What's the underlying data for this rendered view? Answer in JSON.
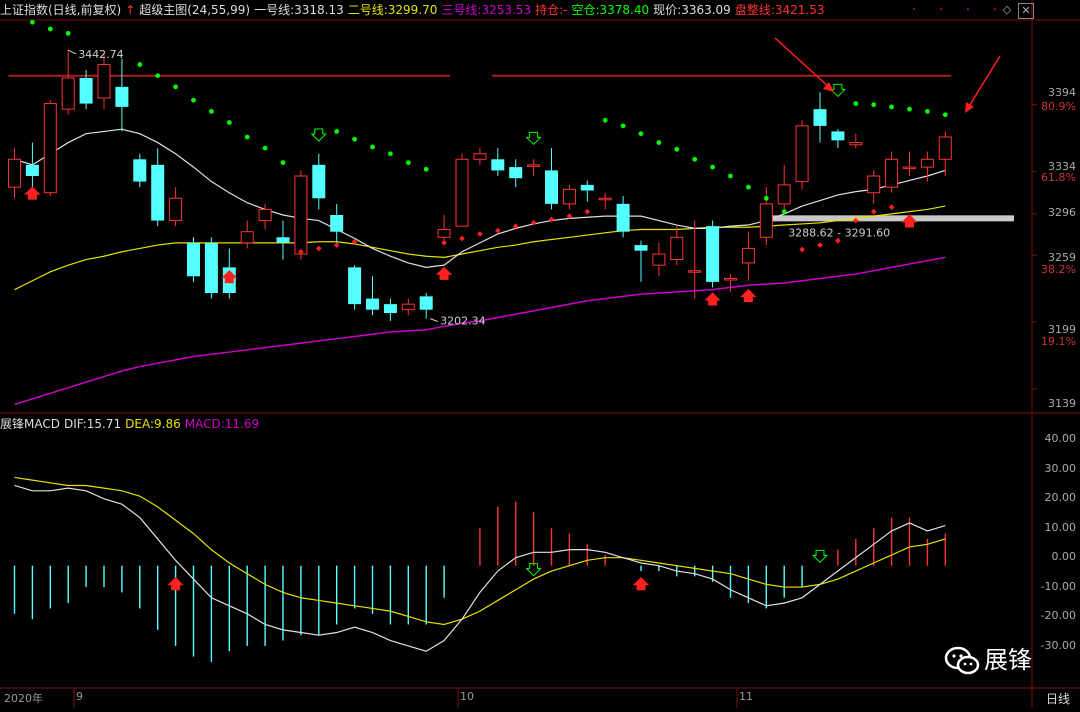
{
  "header": {
    "title": "上证指数(日线,前复权)",
    "indicator_name": "超级主图(24,55,99)",
    "line1_label": "一号线:",
    "line1_value": "3318.13",
    "line2_label": "二号线:",
    "line2_value": "3299.70",
    "line3_label": "三号线:",
    "line3_value": "3253.53",
    "hold_label": "持仓:",
    "hold_value": "-",
    "empty_label": "空仓:",
    "empty_value": "3378.40",
    "price_label": "现价:",
    "price_value": "3363.09",
    "consol_label": "盘整线:",
    "consol_value": "3421.53",
    "dots": "· · · ·"
  },
  "macd_header": {
    "title": "展锋MACD",
    "dif_label": "DIF:",
    "dif_value": "15.71",
    "dea_label": "DEA:",
    "dea_value": "9.86",
    "macd_label": "MACD:",
    "macd_value": "11.69"
  },
  "colors": {
    "up": "#ff3333",
    "down": "#54ffff",
    "line1": "#e0e0e0",
    "line2": "#e8e000",
    "line3": "#cc00cc",
    "sar_up": "#00ff00",
    "sar_down": "#ff2020",
    "resist": "#aa1e1e",
    "support": "#c8c8c8",
    "bg": "#000000"
  },
  "axis": {
    "price_ticks": [
      "3394",
      "3334",
      "3296",
      "3259",
      "3199",
      "3139"
    ],
    "pct_ticks": [
      "80.9%",
      "61.8%",
      "38.2%",
      "19.1%"
    ],
    "macd_ticks": [
      "40.00",
      "30.00",
      "20.00",
      "10.00",
      "0.00",
      "-10.00",
      "-20.00",
      "-30.00"
    ],
    "dates": [
      "2020年",
      "9",
      "10",
      "11"
    ],
    "period": "日线"
  },
  "annotations": {
    "high_label": "3442.74",
    "low_label": "3202.34",
    "range_label": "3288.62 - 3291.60"
  },
  "watermark": "展锋",
  "chart_data": {
    "type": "candlestick",
    "price_range": [
      3120,
      3470
    ],
    "candles": [
      [
        3320,
        3345,
        3310,
        3355
      ],
      [
        3340,
        3330,
        3310,
        3360
      ],
      [
        3315,
        3395,
        3312,
        3398
      ],
      [
        3390,
        3418,
        3385,
        3443
      ],
      [
        3418,
        3395,
        3390,
        3425
      ],
      [
        3400,
        3430,
        3390,
        3440
      ],
      [
        3410,
        3392,
        3370,
        3435
      ],
      [
        3345,
        3325,
        3320,
        3350
      ],
      [
        3340,
        3290,
        3285,
        3355
      ],
      [
        3290,
        3310,
        3285,
        3320
      ],
      [
        3270,
        3240,
        3235,
        3275
      ],
      [
        3270,
        3225,
        3220,
        3275
      ],
      [
        3248,
        3225,
        3220,
        3265
      ],
      [
        3270,
        3280,
        3265,
        3290
      ],
      [
        3290,
        3300,
        3282,
        3305
      ],
      [
        3275,
        3270,
        3255,
        3290
      ],
      [
        3260,
        3330,
        3255,
        3335
      ],
      [
        3340,
        3310,
        3300,
        3350
      ],
      [
        3295,
        3280,
        3270,
        3305
      ],
      [
        3248,
        3215,
        3210,
        3250
      ],
      [
        3220,
        3210,
        3205,
        3240
      ],
      [
        3215,
        3207,
        3200,
        3220
      ],
      [
        3210,
        3215,
        3205,
        3220
      ],
      [
        3222,
        3210,
        3202,
        3225
      ],
      [
        3275,
        3282,
        3270,
        3295
      ],
      [
        3285,
        3345,
        3285,
        3350
      ],
      [
        3345,
        3350,
        3340,
        3355
      ],
      [
        3345,
        3335,
        3330,
        3355
      ],
      [
        3338,
        3328,
        3320,
        3345
      ],
      [
        3340,
        3340,
        3330,
        3345
      ],
      [
        3335,
        3305,
        3300,
        3355
      ],
      [
        3305,
        3318,
        3300,
        3322
      ],
      [
        3322,
        3317,
        3307,
        3326
      ],
      [
        3310,
        3310,
        3300,
        3315
      ],
      [
        3305,
        3280,
        3275,
        3312
      ],
      [
        3268,
        3263,
        3235,
        3272
      ],
      [
        3250,
        3260,
        3240,
        3270
      ],
      [
        3255,
        3275,
        3250,
        3285
      ],
      [
        3245,
        3245,
        3220,
        3290
      ],
      [
        3285,
        3235,
        3230,
        3290
      ],
      [
        3238,
        3238,
        3226,
        3242
      ],
      [
        3252,
        3265,
        3236,
        3280
      ],
      [
        3275,
        3305,
        3268,
        3320
      ],
      [
        3305,
        3322,
        3300,
        3340
      ],
      [
        3325,
        3375,
        3318,
        3380
      ],
      [
        3390,
        3375,
        3360,
        3405
      ],
      [
        3370,
        3362,
        3355,
        3372
      ],
      [
        3358,
        3360,
        3355,
        3368
      ],
      [
        3315,
        3330,
        3305,
        3335
      ],
      [
        3320,
        3345,
        3315,
        3352
      ],
      [
        3338,
        3338,
        3330,
        3352
      ],
      [
        3338,
        3345,
        3325,
        3352
      ],
      [
        3345,
        3365,
        3330,
        3370
      ]
    ],
    "line1": [
      3345,
      3340,
      3350,
      3360,
      3368,
      3370,
      3372,
      3368,
      3360,
      3350,
      3338,
      3325,
      3315,
      3306,
      3300,
      3295,
      3292,
      3290,
      3282,
      3274,
      3265,
      3258,
      3252,
      3248,
      3250,
      3262,
      3270,
      3278,
      3283,
      3287,
      3290,
      3292,
      3293,
      3294,
      3294,
      3294,
      3290,
      3286,
      3283,
      3283,
      3285,
      3286,
      3290,
      3296,
      3303,
      3308,
      3313,
      3316,
      3318,
      3322,
      3326,
      3330,
      3335
    ],
    "line2": [
      3228,
      3236,
      3244,
      3250,
      3255,
      3258,
      3262,
      3265,
      3268,
      3270,
      3270,
      3270,
      3270,
      3270,
      3270,
      3270,
      3270,
      3271,
      3271,
      3269,
      3266,
      3263,
      3260,
      3258,
      3257,
      3260,
      3263,
      3266,
      3268,
      3271,
      3273,
      3275,
      3277,
      3279,
      3281,
      3282,
      3282,
      3282,
      3283,
      3284,
      3284,
      3284,
      3285,
      3286,
      3287,
      3288,
      3290,
      3292,
      3294,
      3296,
      3298,
      3300,
      3303
    ],
    "line3": [
      3125,
      3130,
      3135,
      3140,
      3145,
      3150,
      3155,
      3159,
      3162,
      3165,
      3168,
      3170,
      3172,
      3174,
      3176,
      3178,
      3180,
      3182,
      3184,
      3186,
      3188,
      3190,
      3191,
      3192,
      3195,
      3198,
      3200,
      3203,
      3206,
      3209,
      3212,
      3215,
      3218,
      3220,
      3222,
      3224,
      3225,
      3226,
      3227,
      3228,
      3230,
      3232,
      3233,
      3234,
      3236,
      3238,
      3240,
      3242,
      3245,
      3248,
      3251,
      3254,
      3257
    ],
    "sar_green": [
      [
        1,
        3468
      ],
      [
        2,
        3462
      ],
      [
        3,
        3458
      ],
      [
        7,
        3430
      ],
      [
        8,
        3420
      ],
      [
        9,
        3410
      ],
      [
        10,
        3398
      ],
      [
        11,
        3388
      ],
      [
        12,
        3378
      ],
      [
        13,
        3365
      ],
      [
        14,
        3355
      ],
      [
        15,
        3342
      ],
      [
        18,
        3370
      ],
      [
        19,
        3363
      ],
      [
        20,
        3356
      ],
      [
        21,
        3350
      ],
      [
        22,
        3342
      ],
      [
        23,
        3336
      ],
      [
        33,
        3380
      ],
      [
        34,
        3375
      ],
      [
        35,
        3368
      ],
      [
        36,
        3360
      ],
      [
        37,
        3354
      ],
      [
        38,
        3345
      ],
      [
        39,
        3338
      ],
      [
        40,
        3330
      ],
      [
        41,
        3320
      ],
      [
        42,
        3310
      ],
      [
        43,
        3298
      ],
      [
        47,
        3395
      ],
      [
        48,
        3394
      ],
      [
        49,
        3392
      ],
      [
        50,
        3390
      ],
      [
        51,
        3388
      ],
      [
        52,
        3385
      ]
    ],
    "sar_red": [
      [
        16,
        3262
      ],
      [
        17,
        3265
      ],
      [
        18,
        3268
      ],
      [
        19,
        3271
      ],
      [
        24,
        3270
      ],
      [
        25,
        3274
      ],
      [
        26,
        3278
      ],
      [
        27,
        3281
      ],
      [
        28,
        3285
      ],
      [
        29,
        3288
      ],
      [
        30,
        3291
      ],
      [
        31,
        3294
      ],
      [
        32,
        3298
      ],
      [
        44,
        3264
      ],
      [
        45,
        3268
      ],
      [
        46,
        3272
      ],
      [
        47,
        3290
      ],
      [
        48,
        3298
      ],
      [
        49,
        3302
      ]
    ],
    "resistance_segments": [
      [
        0,
        24,
        3420
      ],
      [
        27,
        52,
        3420
      ]
    ],
    "support_segment": [
      42,
      55,
      3292
    ],
    "macd": {
      "range": [
        -45,
        50
      ],
      "dif": [
        30,
        28,
        28,
        29,
        28,
        25,
        23,
        18,
        10,
        2,
        -5,
        -12,
        -15,
        -18,
        -22,
        -24,
        -25,
        -26,
        -25,
        -23,
        -25,
        -28,
        -30,
        -32,
        -28,
        -20,
        -10,
        -2,
        3,
        5,
        5,
        6,
        6,
        5,
        3,
        1,
        0,
        -2,
        -3,
        -5,
        -9,
        -12,
        -15,
        -14,
        -12,
        -7,
        -2,
        3,
        8,
        13,
        16,
        13,
        15
      ],
      "dea": [
        33,
        32,
        31,
        30,
        30,
        29,
        28,
        26,
        22,
        17,
        12,
        6,
        1,
        -3,
        -7,
        -10,
        -12,
        -13,
        -14,
        -15,
        -16,
        -17,
        -19,
        -21,
        -22,
        -20,
        -17,
        -13,
        -9,
        -5,
        -2,
        0,
        2,
        3,
        3,
        2,
        1,
        0,
        -1,
        -2,
        -3,
        -5,
        -7,
        -8,
        -8,
        -7,
        -5,
        -2,
        1,
        4,
        7,
        8,
        10
      ],
      "hist": [
        -18,
        -20,
        -16,
        -14,
        -8,
        -8,
        -10,
        -16,
        -24,
        -30,
        -34,
        -36,
        -32,
        -30,
        -30,
        -28,
        -26,
        -26,
        -22,
        -16,
        -18,
        -22,
        -22,
        -22,
        -12,
        0,
        14,
        22,
        24,
        20,
        14,
        12,
        8,
        4,
        0,
        -2,
        -2,
        -4,
        -4,
        -6,
        -12,
        -14,
        -16,
        -12,
        -8,
        0,
        6,
        10,
        14,
        18,
        18,
        10,
        12
      ]
    }
  }
}
